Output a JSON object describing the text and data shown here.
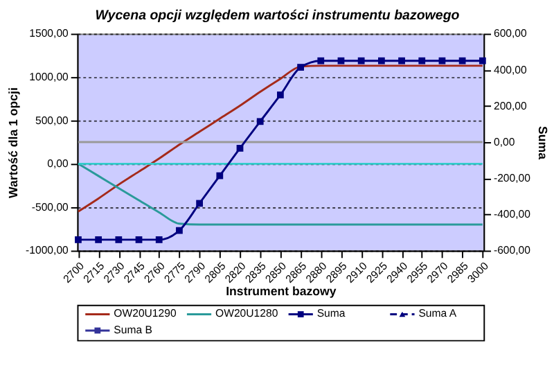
{
  "chart_data": {
    "type": "line",
    "title": "Wycena opcji względem wartości instrumentu bazowego",
    "xlabel": "Instrument bazowy",
    "ylabel": "Wartość dla 1 opcji",
    "y2label": "Suma",
    "categories": [
      "2700",
      "2715",
      "2730",
      "2745",
      "2760",
      "2775",
      "2790",
      "2805",
      "2820",
      "2835",
      "2850",
      "2865",
      "2880",
      "2895",
      "2910",
      "2925",
      "2940",
      "2955",
      "2970",
      "2985",
      "3000"
    ],
    "series": [
      {
        "name": "OW20U1290",
        "color": "#a52a1a",
        "values": [
          -550,
          -400,
          -240,
          -90,
          60,
          220,
          370,
          520,
          670,
          830,
          980,
          1120,
          1130,
          1130,
          1130,
          1130,
          1130,
          1130,
          1130,
          1130,
          1130
        ]
      },
      {
        "name": "OW20U1280",
        "color": "#2a9a9a",
        "values": [
          0,
          -140,
          -280,
          -420,
          -560,
          -690,
          -700,
          -700,
          -700,
          -700,
          -700,
          -700,
          -700,
          -700,
          -700,
          -700,
          -700,
          -700,
          -700,
          -700,
          -700
        ]
      },
      {
        "color": "#33cccc",
        "values": [
          0,
          0,
          0,
          0,
          0,
          0,
          0,
          0,
          0,
          0,
          0,
          0,
          0,
          0,
          0,
          0,
          0,
          0,
          0,
          0,
          0
        ]
      },
      {
        "color": "#999999",
        "axis": "y2",
        "values": [
          0,
          0,
          0,
          0,
          0,
          0,
          0,
          0,
          0,
          0,
          0,
          0,
          0,
          0,
          0,
          0,
          0,
          0,
          0,
          0,
          0
        ]
      },
      {
        "name": "Suma",
        "color": "#000080",
        "axis": "y2",
        "marker": "square",
        "values": [
          -540,
          -540,
          -540,
          -540,
          -540,
          -489,
          -339,
          -186,
          -34,
          114,
          261,
          414,
          450,
          450,
          450,
          450,
          450,
          450,
          450,
          450,
          450
        ]
      },
      {
        "name": "Suma A",
        "color": "#000080",
        "axis": "y2",
        "marker": "triangle",
        "line_style": "dashed",
        "values": [
          null,
          null,
          null,
          null,
          null,
          null,
          null,
          null,
          null,
          null,
          null,
          null,
          null,
          null,
          null,
          null,
          null,
          null,
          null,
          null,
          null
        ]
      },
      {
        "name": "Suma B",
        "color": "#333399",
        "axis": "y2",
        "marker": "square",
        "values": [
          null,
          null,
          null,
          null,
          null,
          null,
          null,
          null,
          null,
          null,
          null,
          null,
          null,
          null,
          null,
          null,
          null,
          null,
          null,
          null,
          null
        ]
      }
    ],
    "ylim": [
      -1000,
      1500
    ],
    "yticks": [
      {
        "value": -1000,
        "label": "-1000,00"
      },
      {
        "value": -500,
        "label": "-500,00"
      },
      {
        "value": 0,
        "label": "0,00"
      },
      {
        "value": 500,
        "label": "500,00"
      },
      {
        "value": 1000,
        "label": "1000,00"
      },
      {
        "value": 1500,
        "label": "1500,00"
      }
    ],
    "y2lim": [
      -600,
      600
    ],
    "y2ticks": [
      {
        "value": -600,
        "label": "-600,00"
      },
      {
        "value": -400,
        "label": "-400,00"
      },
      {
        "value": -200,
        "label": "-200,00"
      },
      {
        "value": 0,
        "label": "0,00"
      },
      {
        "value": 200,
        "label": "200,00"
      },
      {
        "value": 400,
        "label": "400,00"
      },
      {
        "value": 600,
        "label": "600,00"
      }
    ],
    "grid": "y",
    "legend": "bottom",
    "marker": "none",
    "line_style": "solid"
  }
}
